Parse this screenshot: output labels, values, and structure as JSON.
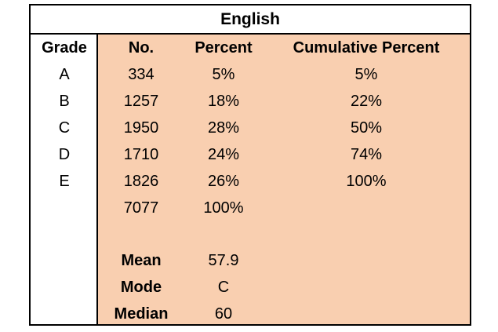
{
  "table": {
    "title": "English",
    "headers": {
      "grade": "Grade",
      "no": "No.",
      "percent": "Percent",
      "cumulative": "Cumulative Percent"
    },
    "rows": [
      {
        "grade": "A",
        "no": "334",
        "percent": "5%",
        "cumulative": "5%"
      },
      {
        "grade": "B",
        "no": "1257",
        "percent": "18%",
        "cumulative": "22%"
      },
      {
        "grade": "C",
        "no": "1950",
        "percent": "28%",
        "cumulative": "50%"
      },
      {
        "grade": "D",
        "no": "1710",
        "percent": "24%",
        "cumulative": "74%"
      },
      {
        "grade": "E",
        "no": "1826",
        "percent": "26%",
        "cumulative": "100%"
      }
    ],
    "total": {
      "no": "7077",
      "percent": "100%"
    },
    "stats": [
      {
        "label": "Mean",
        "value": "57.9"
      },
      {
        "label": "Mode",
        "value": "C"
      },
      {
        "label": "Median",
        "value": "60"
      }
    ]
  },
  "colors": {
    "shaded_region": "#f9cfb0",
    "border": "#000000"
  }
}
